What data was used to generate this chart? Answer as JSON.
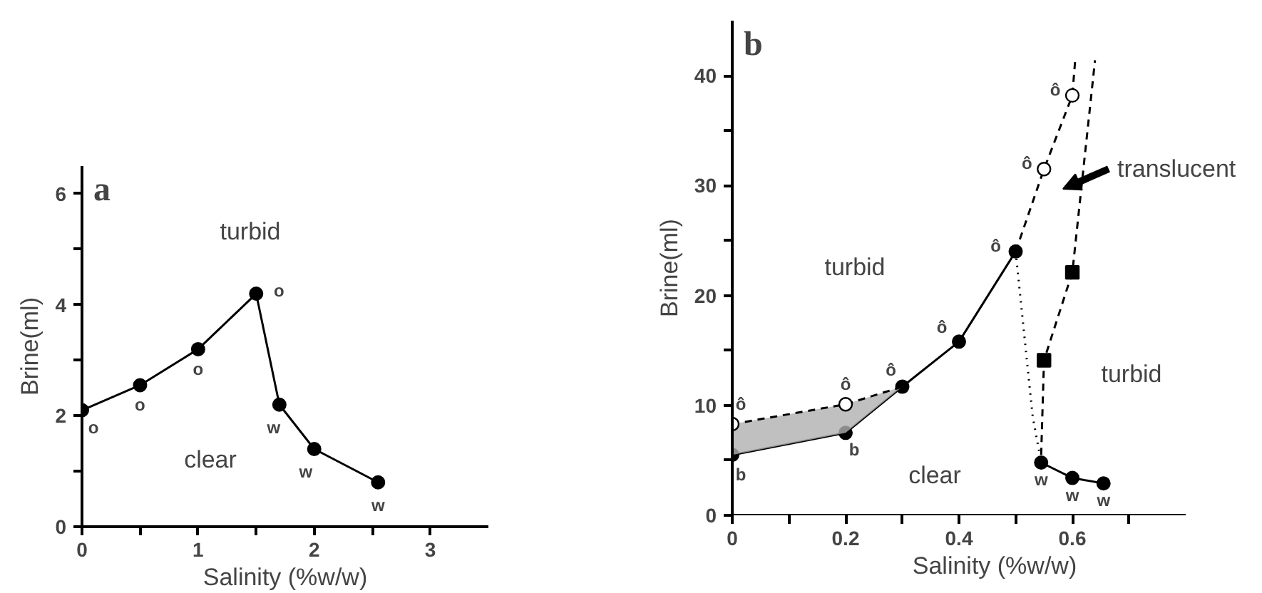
{
  "chart_data": [
    {
      "type": "line",
      "title": "a",
      "xlabel": "Salinity (%w/w)",
      "ylabel": "Brine(ml)",
      "xlim": [
        0,
        3.5
      ],
      "ylim": [
        0,
        6.5
      ],
      "xticks": [
        0,
        {
          "value": 0.5,
          "label": null
        },
        1,
        {
          "value": 1.5,
          "label": null
        },
        2,
        {
          "value": 2.5,
          "label": null
        },
        3
      ],
      "yticks": [
        0,
        {
          "value": 1,
          "label": null
        },
        2,
        {
          "value": 3,
          "label": null
        },
        4,
        {
          "value": 5,
          "label": null
        },
        6
      ],
      "grid": false,
      "marker": "circle",
      "line_style": "solid",
      "series": [
        {
          "color": "#000000",
          "x": [
            0,
            0.5,
            1,
            1.5,
            1.7,
            2,
            2.55
          ],
          "values": [
            2.1,
            2.55,
            3.2,
            4.2,
            2.2,
            1.4,
            0.8
          ]
        }
      ],
      "annotations": [
        "turbid",
        "clear",
        {
          "text": "o",
          "x": 0,
          "y": 2.1
        },
        {
          "text": "o",
          "x": 0.5,
          "y": 2.55
        },
        {
          "text": "o",
          "x": 1,
          "y": 3.2
        },
        {
          "text": "o",
          "x": 1.5,
          "y": 4.2
        },
        {
          "text": "w",
          "x": 1.7,
          "y": 2.2
        },
        {
          "text": "w",
          "x": 2,
          "y": 1.4
        },
        {
          "text": "w",
          "x": 2.55,
          "y": 0.8
        }
      ]
    },
    {
      "type": "line",
      "title": "b",
      "xlabel": "Salinity (%w/w)",
      "ylabel": "Brine(ml)",
      "xlim": [
        0,
        0.8
      ],
      "ylim": [
        0,
        45
      ],
      "xticks": [
        0,
        {
          "value": 0.1,
          "label": null
        },
        0.2,
        {
          "value": 0.3,
          "label": null
        },
        0.4,
        {
          "value": 0.5,
          "label": null
        },
        0.6,
        {
          "value": 0.7,
          "label": null
        }
      ],
      "yticks": [
        0,
        {
          "value": 5,
          "label": null
        },
        10,
        {
          "value": 15,
          "label": null
        },
        20,
        {
          "value": 25,
          "label": null
        },
        30,
        {
          "value": 35,
          "label": null
        },
        40
      ],
      "grid": false,
      "marker": "circle",
      "line_style": "solid",
      "series": [
        {
          "color": "#000000",
          "x": [
            0,
            0.2,
            0.3,
            0.4,
            0.5
          ],
          "values": [
            5.5,
            7.5,
            11.7,
            15.8,
            24
          ]
        },
        {
          "color": "#000000",
          "marker": "none",
          "line_style": "dashed",
          "x": [
            0,
            0.2,
            0.3
          ],
          "values": [
            8.3,
            10.1,
            11.7
          ],
          "lower": [
            5.5,
            7.5,
            11.7
          ],
          "upper": [
            8.3,
            10.1,
            11.7
          ]
        },
        {
          "color": "#000000",
          "marker": "none",
          "line_style": "dashed",
          "x": [
            0.5,
            0.55,
            0.6,
            0.605
          ],
          "values": [
            24,
            31.5,
            38.2,
            41.4
          ]
        },
        {
          "type": "scatter",
          "color": "#ffffff",
          "x": [
            0,
            0.2,
            0.55,
            0.6
          ],
          "values": [
            8.3,
            10.1,
            31.5,
            38.2
          ]
        },
        {
          "color": "#000000",
          "marker": "none",
          "line_style": "dotted",
          "x": [
            0.5,
            0.53,
            0.545
          ],
          "values": [
            24,
            9,
            4.8
          ]
        },
        {
          "color": "#000000",
          "x": [
            0.545,
            0.6,
            0.655
          ],
          "values": [
            4.8,
            3.4,
            2.9
          ]
        },
        {
          "color": "#000000",
          "marker": "none",
          "line_style": "dashed",
          "x": [
            0.545,
            0.55,
            0.6,
            0.64
          ],
          "values": [
            5.5,
            14.1,
            22.1,
            41.4
          ]
        },
        {
          "type": "scatter",
          "color": "#000000",
          "marker": "square",
          "x": [
            0.55,
            0.6
          ],
          "values": [
            14.1,
            22.1
          ]
        }
      ],
      "annotations": [
        "turbid",
        "turbid",
        "clear",
        "translucent",
        {
          "text": "b",
          "x": 0,
          "y": 5.5
        },
        {
          "text": "b",
          "x": 0.2,
          "y": 7.5
        },
        {
          "text": "ô",
          "x": 0,
          "y": 8.3
        },
        {
          "text": "ô",
          "x": 0.2,
          "y": 10.1
        },
        {
          "text": "ô",
          "x": 0.3,
          "y": 11.7
        },
        {
          "text": "ô",
          "x": 0.4,
          "y": 15.8
        },
        {
          "text": "ô",
          "x": 0.5,
          "y": 24
        },
        {
          "text": "ô",
          "x": 0.55,
          "y": 31.5
        },
        {
          "text": "ô",
          "x": 0.6,
          "y": 38.2
        },
        {
          "text": "w",
          "x": 0.545,
          "y": 4.8
        },
        {
          "text": "w",
          "x": 0.6,
          "y": 3.4
        },
        {
          "text": "w",
          "x": 0.655,
          "y": 2.9
        }
      ]
    }
  ]
}
